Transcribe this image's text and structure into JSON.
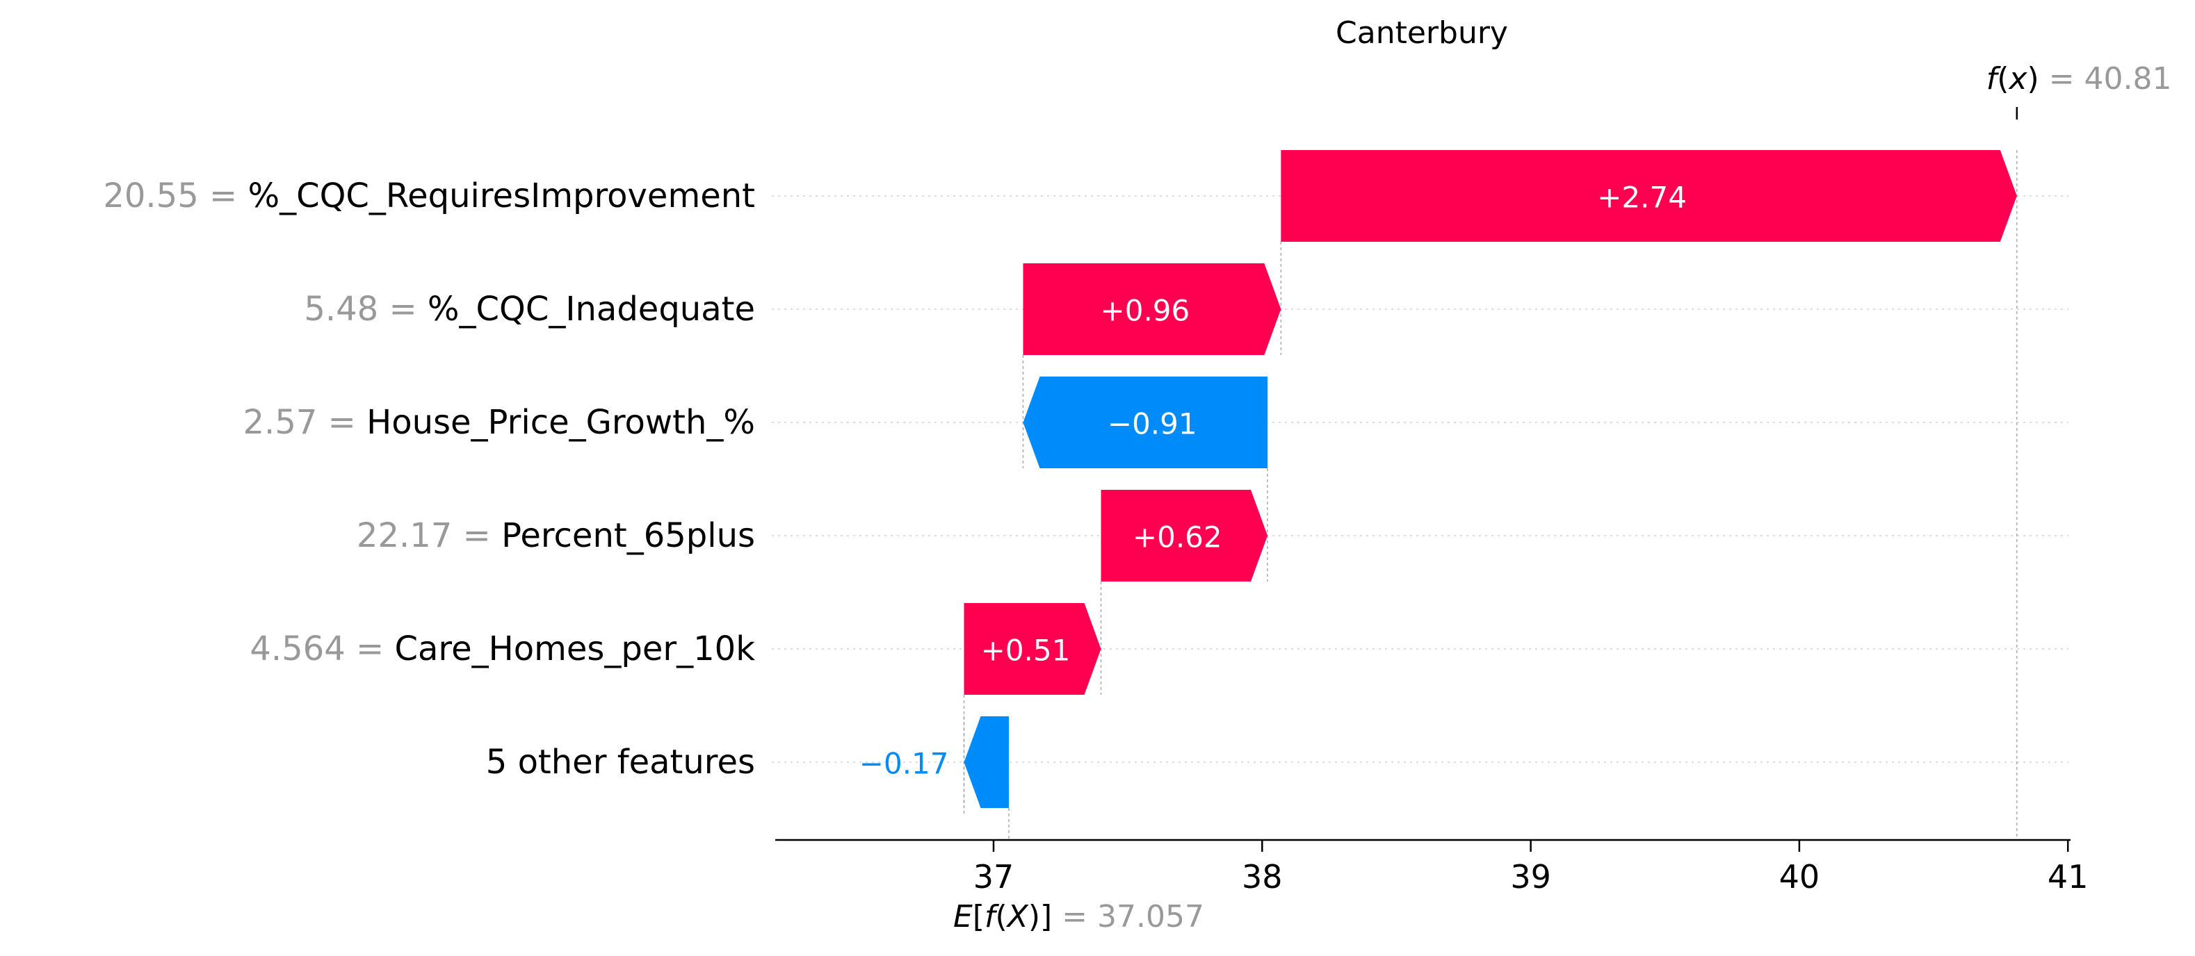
{
  "chart_data": {
    "type": "bar",
    "subtype": "shap-waterfall",
    "title": "Canterbury",
    "fx": {
      "label_prefix": "f",
      "label_var": "x",
      "value_text": "= 40.81",
      "value": 40.81
    },
    "ex": {
      "label_prefix": "E",
      "label_inner": "f",
      "label_var": "X",
      "value_text": "= 37.057",
      "value": 37.057
    },
    "xlim": [
      36.22,
      41.07
    ],
    "xticks": [
      37,
      38,
      39,
      40,
      41
    ],
    "grid": true,
    "features": [
      {
        "value_text": "20.55 =",
        "name": "%_CQC_RequiresImprovement",
        "contribution": 2.74,
        "label": "+2.74",
        "start": 38.07,
        "end": 40.81
      },
      {
        "value_text": "5.48 =",
        "name": "%_CQC_Inadequate",
        "contribution": 0.96,
        "label": "+0.96",
        "start": 37.11,
        "end": 38.07
      },
      {
        "value_text": "2.57 =",
        "name": "House_Price_Growth_%",
        "contribution": -0.91,
        "label": "−0.91",
        "start": 38.02,
        "end": 37.11
      },
      {
        "value_text": "22.17 =",
        "name": "Percent_65plus",
        "contribution": 0.62,
        "label": "+0.62",
        "start": 37.4,
        "end": 38.02
      },
      {
        "value_text": "4.564 =",
        "name": "Care_Homes_per_10k",
        "contribution": 0.51,
        "label": "+0.51",
        "start": 36.89,
        "end": 37.4
      },
      {
        "value_text": "",
        "name": "5 other features",
        "contribution": -0.17,
        "label": "−0.17",
        "start": 37.057,
        "end": 36.89
      }
    ],
    "colors": {
      "positive": "#ff0051",
      "negative": "#008bfb",
      "grey": "#999999",
      "text": "#000000",
      "inside_text": "#ffffff"
    }
  }
}
